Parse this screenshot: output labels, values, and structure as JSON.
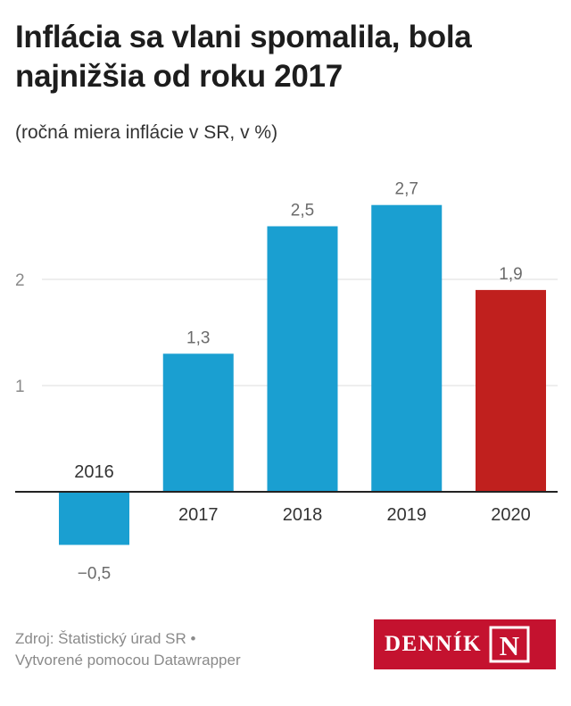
{
  "header": {
    "title": "Inflácia sa vlani spomalila, bola najnižšia od roku 2017",
    "subtitle": "(ročná miera inflácie v SR, v %)"
  },
  "footer": {
    "source_line1": "Zdroj: Štatistický úrad SR •",
    "source_line2": "Vytvorené pomocou Datawrapper",
    "logo_text": "DENNÍK",
    "logo_mark": "N"
  },
  "chart_data": {
    "type": "bar",
    "title": "Inflácia sa vlani spomalila, bola najnižšia od roku 2017",
    "subtitle": "(ročná miera inflácie v SR, v %)",
    "categories": [
      "2016",
      "2017",
      "2018",
      "2019",
      "2020"
    ],
    "values": [
      -0.5,
      1.3,
      2.5,
      2.7,
      1.9
    ],
    "value_labels": [
      "−0,5",
      "1,3",
      "2,5",
      "2,7",
      "1,9"
    ],
    "colors": [
      "#1a9fd1",
      "#1a9fd1",
      "#1a9fd1",
      "#1a9fd1",
      "#c0201e"
    ],
    "yticks": [
      1,
      2
    ],
    "ytick_labels": [
      "1",
      "2"
    ],
    "ylim": [
      -0.6,
      3.2
    ],
    "grid": true,
    "xlabel": "",
    "ylabel": ""
  }
}
